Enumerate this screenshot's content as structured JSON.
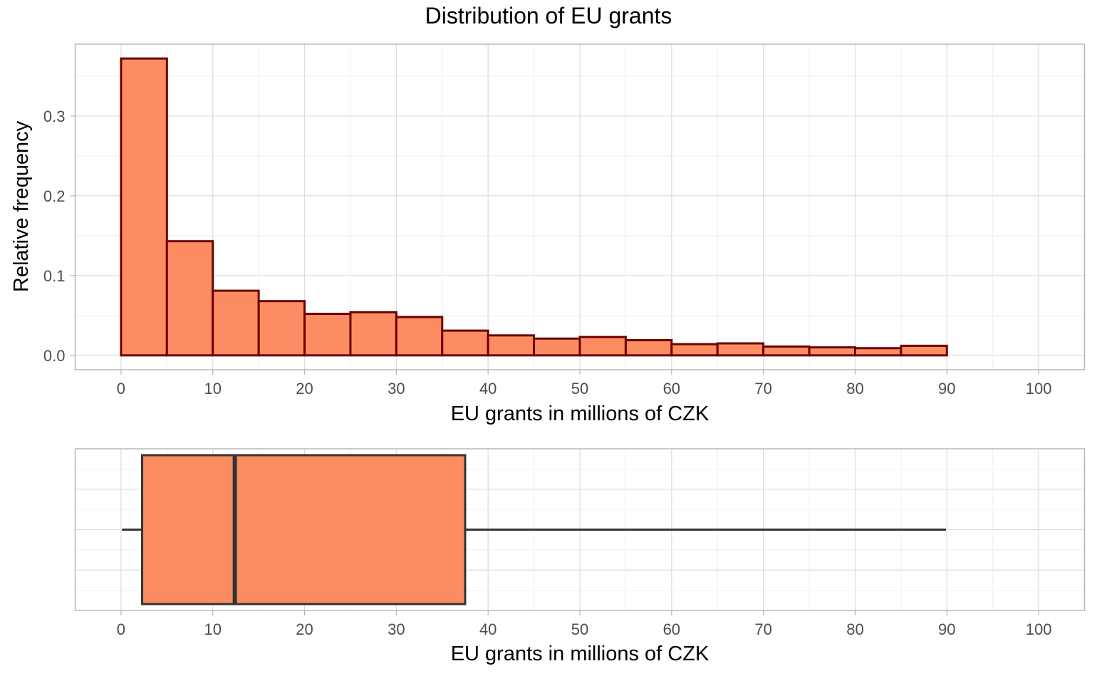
{
  "chart_data": [
    {
      "type": "histogram",
      "title": "Distribution of EU grants",
      "xlabel": "EU grants in millions of CZK",
      "ylabel": "Relative frequency",
      "xlim": [
        -5,
        105
      ],
      "ylim": [
        -0.018,
        0.39
      ],
      "x_ticks": [
        0,
        10,
        20,
        30,
        40,
        50,
        60,
        70,
        80,
        90,
        100
      ],
      "y_ticks": [
        0.0,
        0.1,
        0.2,
        0.3
      ],
      "y_tick_labels": [
        "0.0",
        "0.1",
        "0.2",
        "0.3"
      ],
      "grid": true,
      "bin_width": 5,
      "bins": [
        {
          "start": 0,
          "end": 5,
          "value": 0.372
        },
        {
          "start": 5,
          "end": 10,
          "value": 0.143
        },
        {
          "start": 10,
          "end": 15,
          "value": 0.081
        },
        {
          "start": 15,
          "end": 20,
          "value": 0.068
        },
        {
          "start": 20,
          "end": 25,
          "value": 0.052
        },
        {
          "start": 25,
          "end": 30,
          "value": 0.054
        },
        {
          "start": 30,
          "end": 35,
          "value": 0.048
        },
        {
          "start": 35,
          "end": 40,
          "value": 0.031
        },
        {
          "start": 40,
          "end": 45,
          "value": 0.025
        },
        {
          "start": 45,
          "end": 50,
          "value": 0.021
        },
        {
          "start": 50,
          "end": 55,
          "value": 0.023
        },
        {
          "start": 55,
          "end": 60,
          "value": 0.019
        },
        {
          "start": 60,
          "end": 65,
          "value": 0.014
        },
        {
          "start": 65,
          "end": 70,
          "value": 0.015
        },
        {
          "start": 70,
          "end": 75,
          "value": 0.011
        },
        {
          "start": 75,
          "end": 80,
          "value": 0.01
        },
        {
          "start": 80,
          "end": 85,
          "value": 0.009
        },
        {
          "start": 85,
          "end": 90,
          "value": 0.012
        }
      ],
      "colors": {
        "fill": "#FC8D62",
        "stroke": "#6B0000"
      }
    },
    {
      "type": "boxplot",
      "xlabel": "EU grants in millions of CZK",
      "xlim": [
        -5,
        105
      ],
      "x_ticks": [
        0,
        10,
        20,
        30,
        40,
        50,
        60,
        70,
        80,
        90,
        100
      ],
      "grid": true,
      "box": {
        "whisker_low": 0.1,
        "q1": 2.3,
        "median": 12.4,
        "q3": 37.5,
        "whisker_high": 89.9
      },
      "colors": {
        "fill": "#FC8D62",
        "stroke": "#333333"
      }
    }
  ]
}
